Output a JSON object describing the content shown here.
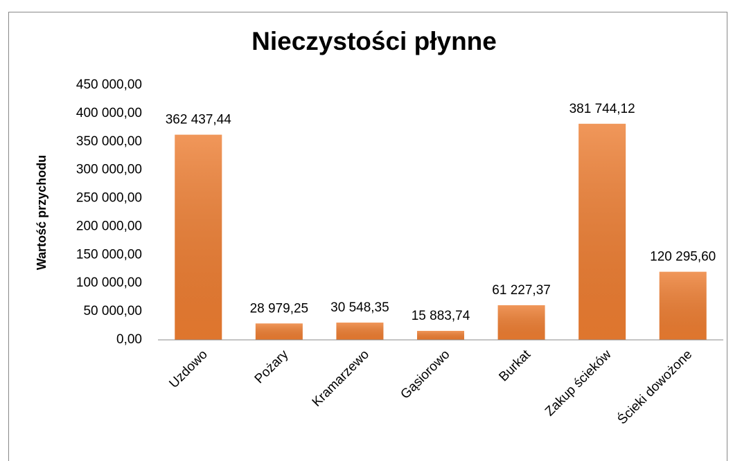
{
  "chart_data": {
    "type": "bar",
    "title": "Nieczystości płynne",
    "y_label": "Wartość przychodu",
    "categories": [
      "Uzdowo",
      "Pożary",
      "Kramarzewo",
      "Gąsiorowo",
      "Burkat",
      "Zakup ścieków",
      "Ścieki dowożone"
    ],
    "values": [
      362437.44,
      28979.25,
      30548.35,
      15883.74,
      61227.37,
      381744.12,
      120295.6
    ],
    "value_labels": [
      "362 437,44",
      "28 979,25",
      "30 548,35",
      "15 883,74",
      "61 227,37",
      "381 744,12",
      "120 295,60"
    ],
    "color": "#ed7d31",
    "ylim": [
      0,
      450000
    ],
    "yticks": [
      {
        "value": 0,
        "label": "0,00"
      },
      {
        "value": 50000,
        "label": "50 000,00"
      },
      {
        "value": 100000,
        "label": "100 000,00"
      },
      {
        "value": 150000,
        "label": "150 000,00"
      },
      {
        "value": 200000,
        "label": "200 000,00"
      },
      {
        "value": 250000,
        "label": "250 000,00"
      },
      {
        "value": 300000,
        "label": "300 000,00"
      },
      {
        "value": 350000,
        "label": "350 000,00"
      },
      {
        "value": 400000,
        "label": "400 000,00"
      },
      {
        "value": 450000,
        "label": "450 000,00"
      }
    ],
    "grid": false
  }
}
